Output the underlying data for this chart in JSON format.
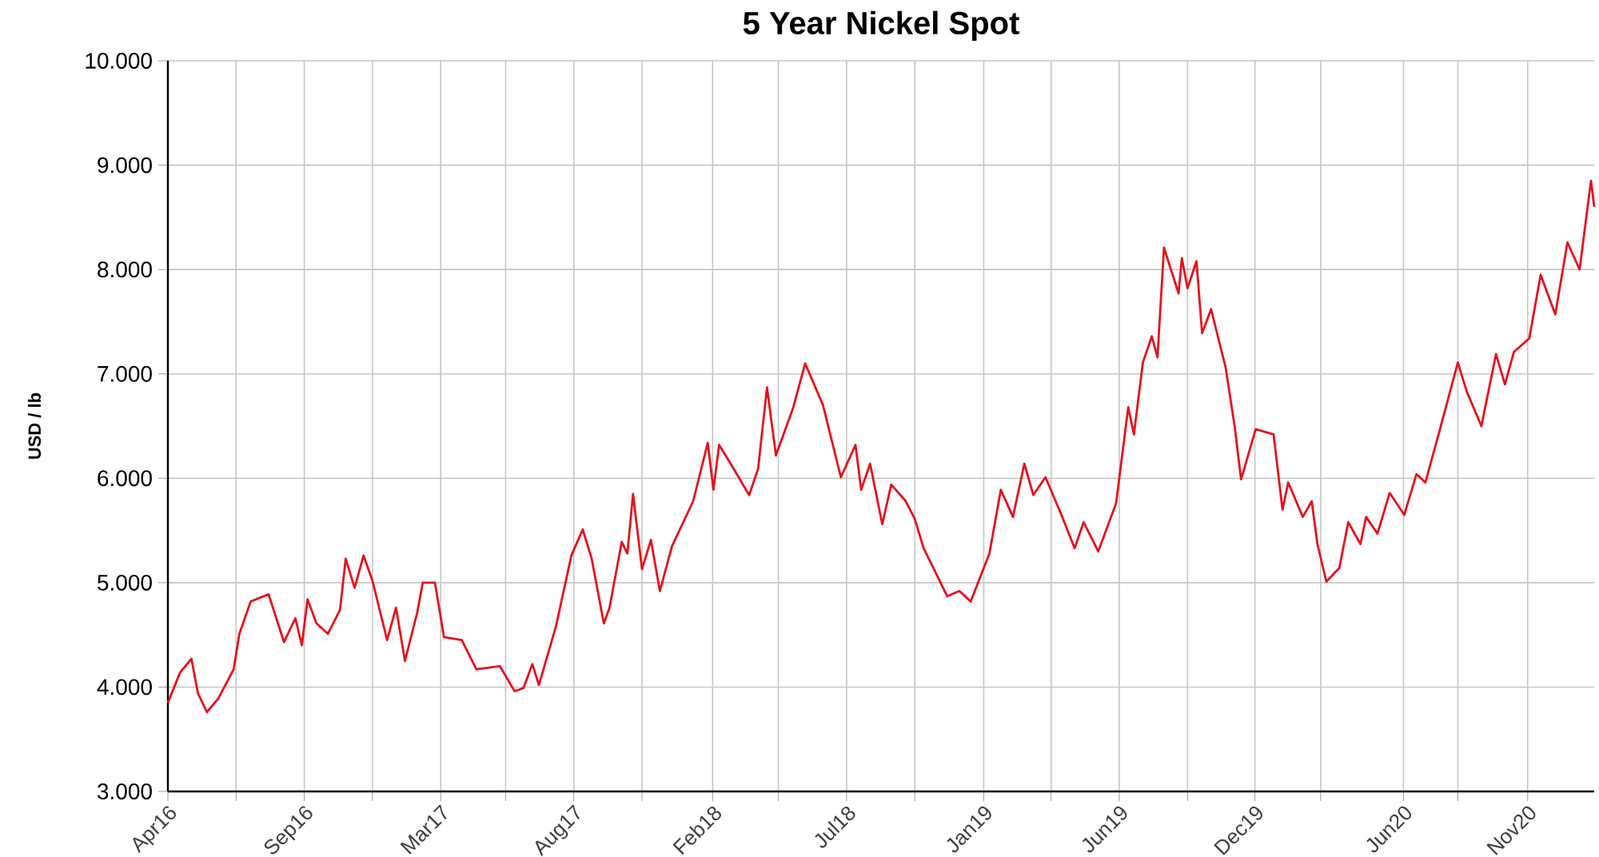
{
  "chart_data": {
    "type": "line",
    "title": "5 Year Nickel Spot",
    "ylabel": "USD / lb",
    "x": [
      "2016-04-01",
      "2016-04-16",
      "2016-04-30",
      "2016-05-08",
      "2016-05-19",
      "2016-06-02",
      "2016-06-21",
      "2016-06-28",
      "2016-07-12",
      "2016-08-03",
      "2016-08-22",
      "2016-09-05",
      "2016-09-13",
      "2016-09-20",
      "2016-10-01",
      "2016-10-15",
      "2016-10-30",
      "2016-11-06",
      "2016-11-17",
      "2016-11-28",
      "2016-12-09",
      "2016-12-27",
      "2017-01-07",
      "2017-01-18",
      "2017-02-02",
      "2017-02-09",
      "2017-02-24",
      "2017-03-07",
      "2017-03-29",
      "2017-04-16",
      "2017-05-15",
      "2017-06-02",
      "2017-06-13",
      "2017-06-24",
      "2017-07-02",
      "2017-07-23",
      "2017-08-11",
      "2017-08-25",
      "2017-09-05",
      "2017-09-20",
      "2017-09-27",
      "2017-10-12",
      "2017-10-19",
      "2017-10-26",
      "2017-11-06",
      "2017-11-17",
      "2017-11-28",
      "2017-12-13",
      "2018-01-08",
      "2018-01-26",
      "2018-02-02",
      "2018-02-09",
      "2018-02-27",
      "2018-03-18",
      "2018-03-29",
      "2018-04-09",
      "2018-04-20",
      "2018-05-11",
      "2018-05-26",
      "2018-06-17",
      "2018-07-09",
      "2018-07-27",
      "2018-08-03",
      "2018-08-14",
      "2018-08-29",
      "2018-09-09",
      "2018-09-27",
      "2018-10-08",
      "2018-10-19",
      "2018-11-17",
      "2018-12-02",
      "2018-12-16",
      "2019-01-08",
      "2019-01-22",
      "2019-02-06",
      "2019-02-20",
      "2019-03-03",
      "2019-03-18",
      "2019-04-05",
      "2019-04-23",
      "2019-05-04",
      "2019-05-22",
      "2019-06-13",
      "2019-06-28",
      "2019-07-05",
      "2019-07-16",
      "2019-07-27",
      "2019-08-03",
      "2019-08-11",
      "2019-08-29",
      "2019-09-02",
      "2019-09-09",
      "2019-09-20",
      "2019-09-27",
      "2019-10-08",
      "2019-10-26",
      "2019-11-06",
      "2019-11-14",
      "2019-12-02",
      "2019-12-24",
      "2020-01-04",
      "2020-01-11",
      "2020-01-29",
      "2020-02-09",
      "2020-02-16",
      "2020-02-27",
      "2020-03-14",
      "2020-03-25",
      "2020-04-09",
      "2020-04-16",
      "2020-04-30",
      "2020-05-15",
      "2020-06-02",
      "2020-06-17",
      "2020-06-28",
      "2020-07-16",
      "2020-08-07",
      "2020-08-18",
      "2020-09-05",
      "2020-09-23",
      "2020-10-04",
      "2020-10-15",
      "2020-11-03",
      "2020-11-17",
      "2020-12-05",
      "2020-12-20",
      "2021-01-04",
      "2021-01-18",
      "2021-01-22"
    ],
    "series": [
      {
        "color": "#e8101c",
        "values": [
          3.85,
          4.14,
          4.27,
          3.94,
          3.76,
          3.89,
          4.17,
          4.51,
          4.82,
          4.89,
          4.43,
          4.66,
          4.4,
          4.84,
          4.61,
          4.51,
          4.74,
          5.23,
          4.95,
          5.26,
          5.02,
          4.45,
          4.76,
          4.25,
          4.71,
          5.0,
          5.0,
          4.48,
          4.45,
          4.17,
          4.2,
          3.96,
          3.99,
          4.22,
          4.02,
          4.58,
          5.26,
          5.51,
          5.23,
          4.61,
          4.76,
          5.39,
          5.28,
          5.85,
          5.13,
          5.41,
          4.92,
          5.35,
          5.78,
          6.34,
          5.89,
          6.32,
          6.09,
          5.84,
          6.09,
          6.87,
          6.22,
          6.67,
          7.1,
          6.7,
          6.01,
          6.32,
          5.89,
          6.14,
          5.56,
          5.94,
          5.78,
          5.61,
          5.33,
          4.87,
          4.92,
          4.82,
          5.28,
          5.89,
          5.63,
          6.14,
          5.84,
          6.01,
          5.68,
          5.33,
          5.58,
          5.3,
          5.76,
          6.68,
          6.42,
          7.11,
          7.36,
          7.16,
          8.21,
          7.77,
          8.11,
          7.82,
          8.08,
          7.39,
          7.62,
          7.06,
          6.5,
          5.99,
          6.47,
          6.42,
          5.7,
          5.96,
          5.63,
          5.78,
          5.37,
          5.01,
          5.14,
          5.58,
          5.37,
          5.63,
          5.47,
          5.86,
          5.65,
          6.04,
          5.96,
          6.47,
          7.11,
          6.83,
          6.5,
          7.19,
          6.9,
          7.21,
          7.34,
          7.95,
          7.57,
          8.26,
          8.0,
          8.85,
          8.6
        ]
      }
    ],
    "xlim": [
      "2016-04-01",
      "2021-01-22"
    ],
    "xticks": [
      {
        "value": "2016-04-01",
        "label": "Apr16"
      },
      {
        "value": "2016-06-24",
        "label": null
      },
      {
        "value": "2016-09-16",
        "label": "Sep16"
      },
      {
        "value": "2016-12-09",
        "label": null
      },
      {
        "value": "2017-03-03",
        "label": "Mar17"
      },
      {
        "value": "2017-05-22",
        "label": null
      },
      {
        "value": "2017-08-14",
        "label": "Aug17"
      },
      {
        "value": "2017-11-06",
        "label": null
      },
      {
        "value": "2018-02-01",
        "label": "Feb18"
      },
      {
        "value": "2018-04-23",
        "label": null
      },
      {
        "value": "2018-07-16",
        "label": "Jul18"
      },
      {
        "value": "2018-10-08",
        "label": null
      },
      {
        "value": "2019-01-01",
        "label": "Jan19"
      },
      {
        "value": "2019-03-25",
        "label": null
      },
      {
        "value": "2019-06-17",
        "label": "Jun19"
      },
      {
        "value": "2019-09-09",
        "label": null
      },
      {
        "value": "2019-12-01",
        "label": "Dec19"
      },
      {
        "value": "2020-02-20",
        "label": null
      },
      {
        "value": "2020-06-01",
        "label": "Jun20"
      },
      {
        "value": "2020-08-07",
        "label": null
      },
      {
        "value": "2020-11-01",
        "label": "Nov20"
      }
    ],
    "ylim": [
      3,
      10
    ],
    "yticks": [
      {
        "value": 3,
        "label": "3.000"
      },
      {
        "value": 4,
        "label": "4.000"
      },
      {
        "value": 5,
        "label": "5.000"
      },
      {
        "value": 6,
        "label": "6.000"
      },
      {
        "value": 7,
        "label": "7.000"
      },
      {
        "value": 8,
        "label": "8.000"
      },
      {
        "value": 9,
        "label": "9.000"
      },
      {
        "value": 10,
        "label": "10.000"
      }
    ],
    "grid": true,
    "marker": "none",
    "line_style": "solid"
  }
}
